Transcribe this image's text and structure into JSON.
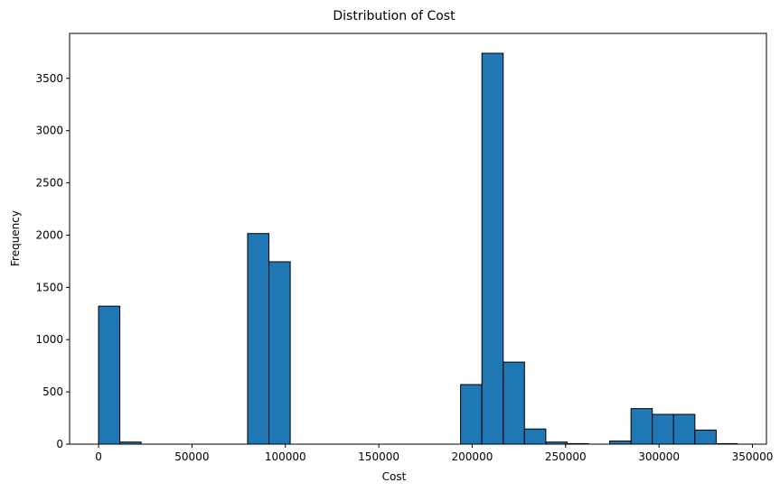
{
  "chart_data": {
    "type": "bar",
    "title": "Distribution of Cost",
    "xlabel": "Cost",
    "ylabel": "Frequency",
    "bar_color": "#1f77b4",
    "edge_color": "#000000",
    "xlim": [
      -15500,
      357500
    ],
    "ylim": [
      0,
      3930
    ],
    "grid": false,
    "legend": "none",
    "x_ticks": [
      {
        "value": 0,
        "label": "0"
      },
      {
        "value": 50000,
        "label": "50000"
      },
      {
        "value": 100000,
        "label": "100000"
      },
      {
        "value": 150000,
        "label": "150000"
      },
      {
        "value": 200000,
        "label": "200000"
      },
      {
        "value": 250000,
        "label": "250000"
      },
      {
        "value": 300000,
        "label": "300000"
      },
      {
        "value": 350000,
        "label": "350000"
      }
    ],
    "y_ticks": [
      {
        "value": 0,
        "label": "0"
      },
      {
        "value": 500,
        "label": "500"
      },
      {
        "value": 1000,
        "label": "1000"
      },
      {
        "value": 1500,
        "label": "1500"
      },
      {
        "value": 2000,
        "label": "2000"
      },
      {
        "value": 2500,
        "label": "2500"
      },
      {
        "value": 3000,
        "label": "3000"
      },
      {
        "value": 3500,
        "label": "3500"
      }
    ],
    "bins": [
      {
        "start": 0,
        "end": 11400,
        "count": 1320
      },
      {
        "start": 11400,
        "end": 22800,
        "count": 20
      },
      {
        "start": 79800,
        "end": 91200,
        "count": 2015
      },
      {
        "start": 91200,
        "end": 102600,
        "count": 1745
      },
      {
        "start": 193800,
        "end": 205200,
        "count": 570
      },
      {
        "start": 205200,
        "end": 216600,
        "count": 3740
      },
      {
        "start": 216600,
        "end": 228000,
        "count": 785
      },
      {
        "start": 228000,
        "end": 239400,
        "count": 145
      },
      {
        "start": 239400,
        "end": 250800,
        "count": 20
      },
      {
        "start": 250800,
        "end": 262200,
        "count": 5
      },
      {
        "start": 273600,
        "end": 285000,
        "count": 30
      },
      {
        "start": 285000,
        "end": 296400,
        "count": 340
      },
      {
        "start": 296400,
        "end": 307800,
        "count": 285
      },
      {
        "start": 307800,
        "end": 319200,
        "count": 285
      },
      {
        "start": 319200,
        "end": 330600,
        "count": 135
      },
      {
        "start": 330600,
        "end": 342000,
        "count": 5
      }
    ]
  }
}
